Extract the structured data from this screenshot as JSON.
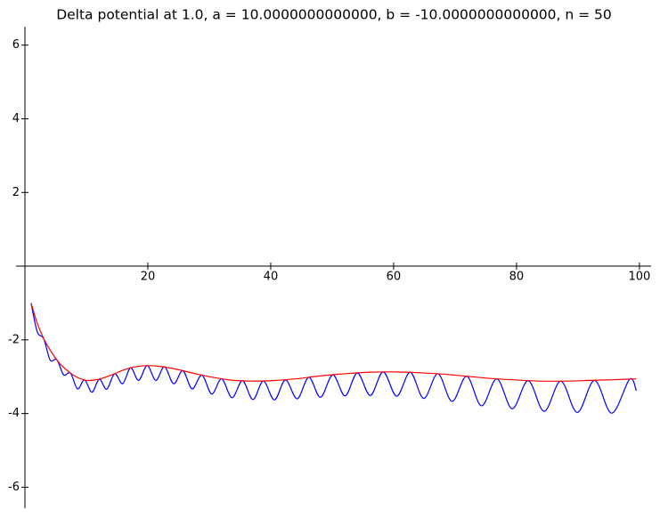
{
  "chart_data": {
    "type": "line",
    "title": "Delta potential at 1.0, a = 10.0000000000000, b = -10.0000000000000, n = 50",
    "xlim": [
      0,
      101.9
    ],
    "ylim": [
      -6.57,
      6.5
    ],
    "xticks": [
      20,
      40,
      60,
      80,
      100
    ],
    "yticks": [
      -6,
      -4,
      -2,
      2,
      4,
      6
    ],
    "series": [
      {
        "color": "#0000ff",
        "x": [
          1,
          2.0,
          3.06,
          4.1,
          5.2,
          6.3,
          7.4,
          8.55,
          9.7,
          10.9,
          12.1,
          13.3,
          14.6,
          15.9,
          17.2,
          18.5,
          19.9,
          21.3,
          22.7,
          24.2,
          25.7,
          27.2,
          28.8,
          30.4,
          32.0,
          33.7,
          35.4,
          37.1,
          38.8,
          40.6,
          42.4,
          44.3,
          46.2,
          48.1,
          50.1,
          52.1,
          54.1,
          56.2,
          58.3,
          60.5,
          62.7,
          64.9,
          67.2,
          69.5,
          71.9,
          74.3,
          76.8,
          79.3,
          81.9,
          84.5,
          87.2,
          89.9,
          92.7,
          95.5,
          98.4,
          99.5
        ],
        "values": [
          -1.0,
          -1.78,
          -1.97,
          -2.55,
          -2.54,
          -2.95,
          -2.9,
          -3.33,
          -3.09,
          -3.42,
          -3.07,
          -3.34,
          -2.92,
          -3.19,
          -2.76,
          -3.1,
          -2.7,
          -3.1,
          -2.73,
          -3.19,
          -2.84,
          -3.33,
          -2.96,
          -3.47,
          -3.06,
          -3.57,
          -3.11,
          -3.62,
          -3.12,
          -3.63,
          -3.09,
          -3.6,
          -3.02,
          -3.56,
          -2.95,
          -3.52,
          -2.9,
          -3.51,
          -2.87,
          -3.53,
          -2.88,
          -3.59,
          -2.92,
          -3.67,
          -2.99,
          -3.79,
          -3.06,
          -3.87,
          -3.11,
          -3.94,
          -3.12,
          -3.97,
          -3.1,
          -3.99,
          -3.07,
          -3.38
        ]
      },
      {
        "color": "#ff0000",
        "x": [
          1,
          2,
          3,
          4,
          5,
          6,
          8,
          10,
          12,
          14,
          16,
          18,
          20,
          22,
          25,
          28,
          31,
          34,
          37,
          40,
          44,
          48,
          52,
          56,
          60,
          64,
          68,
          72,
          76,
          80,
          84,
          88,
          92,
          96,
          99.5
        ],
        "values": [
          -1.0,
          -1.55,
          -1.95,
          -2.25,
          -2.5,
          -2.7,
          -2.97,
          -3.1,
          -3.07,
          -2.96,
          -2.82,
          -2.73,
          -2.7,
          -2.72,
          -2.81,
          -2.93,
          -3.03,
          -3.1,
          -3.12,
          -3.11,
          -3.06,
          -2.98,
          -2.92,
          -2.88,
          -2.87,
          -2.89,
          -2.93,
          -2.99,
          -3.05,
          -3.09,
          -3.12,
          -3.12,
          -3.1,
          -3.08,
          -3.06
        ]
      }
    ]
  }
}
